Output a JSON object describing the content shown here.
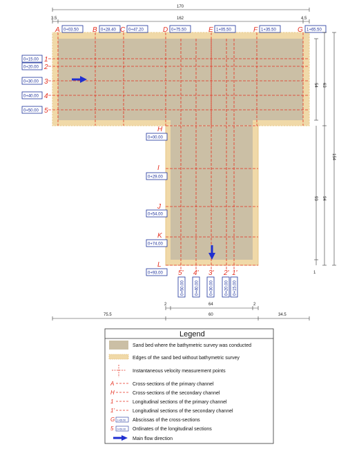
{
  "colors": {
    "sand": "#cbbfa5",
    "edge": "#f0d9a8",
    "red": "#e53020",
    "blue": "#1a2f9a",
    "arrow": "#1f2fd0"
  },
  "dimensions": {
    "top_total": "170",
    "top_left_edge": "3.5",
    "top_inner": "162",
    "top_right_edge": "4.5",
    "right_top_a": "54",
    "right_top_b": "63",
    "right_total": "154",
    "right_lower_a": "93",
    "right_lower_b": "94",
    "right_bottom": "1",
    "bottom_inner_edge_l": "2",
    "bottom_inner": "64",
    "bottom_inner_edge_r": "2",
    "bottom_left": "75.5",
    "bottom_mid": "60",
    "bottom_right": "34.5"
  },
  "primary_cross_sections": [
    {
      "letter": "A",
      "abscissa": "0+03.50"
    },
    {
      "letter": "B",
      "abscissa": "0+28.40"
    },
    {
      "letter": "C",
      "abscissa": "0+47.20"
    },
    {
      "letter": "D",
      "abscissa": "0+75.50"
    },
    {
      "letter": "E",
      "abscissa": "1+05.50"
    },
    {
      "letter": "F",
      "abscissa": "1+35.50"
    },
    {
      "letter": "G",
      "abscissa": "1+65.50"
    }
  ],
  "primary_longitudinal": [
    {
      "number": "1",
      "ordinate": "0+15.00"
    },
    {
      "number": "2",
      "ordinate": "0+20.00"
    },
    {
      "number": "3",
      "ordinate": "0+30.00"
    },
    {
      "number": "4",
      "ordinate": "0+40.00"
    },
    {
      "number": "5",
      "ordinate": "0+50.00"
    }
  ],
  "secondary_cross_sections": [
    {
      "letter": "H",
      "abscissa": "0+00.00"
    },
    {
      "letter": "I",
      "abscissa": "0+29.00"
    },
    {
      "letter": "J",
      "abscissa": "0+54.00"
    },
    {
      "letter": "K",
      "abscissa": "0+74.00"
    },
    {
      "letter": "L",
      "abscissa": "0+93.00"
    }
  ],
  "secondary_longitudinal": [
    {
      "number": "5'",
      "ordinate": "0+50.00"
    },
    {
      "number": "4'",
      "ordinate": "0+40.00"
    },
    {
      "number": "3'",
      "ordinate": "0+30.00"
    },
    {
      "number": "2'",
      "ordinate": "0+20.00"
    },
    {
      "number": "1'",
      "ordinate": "0+15.00"
    }
  ],
  "legend": {
    "title": "Legend",
    "items": [
      {
        "symbol": "sand-swatch",
        "label": "Sand bed where the bathymetric survey was conducted"
      },
      {
        "symbol": "edge-swatch",
        "label": "Edges of the sand bed without bathymetric survey"
      },
      {
        "symbol": "velocity-cross",
        "label": "Instantaneous velocity measurement points"
      },
      {
        "symbol": "A",
        "label": "Cross-sections of the primary channel"
      },
      {
        "symbol": "H",
        "label": "Cross-sections of the secondary channel"
      },
      {
        "symbol": "1",
        "label": "Longitudinal sections of the primary channel"
      },
      {
        "symbol": "1'",
        "label": "Longitudinal sections of the secondary channel"
      },
      {
        "symbol": "G",
        "sample": "1+65.50",
        "label": "Abscissas of the cross-sections"
      },
      {
        "symbol": "5",
        "sample": "0+50.00",
        "label": "Ordinates of the longitudinal sections"
      },
      {
        "symbol": "flow-arrow",
        "label": "Main flow direction"
      }
    ]
  }
}
